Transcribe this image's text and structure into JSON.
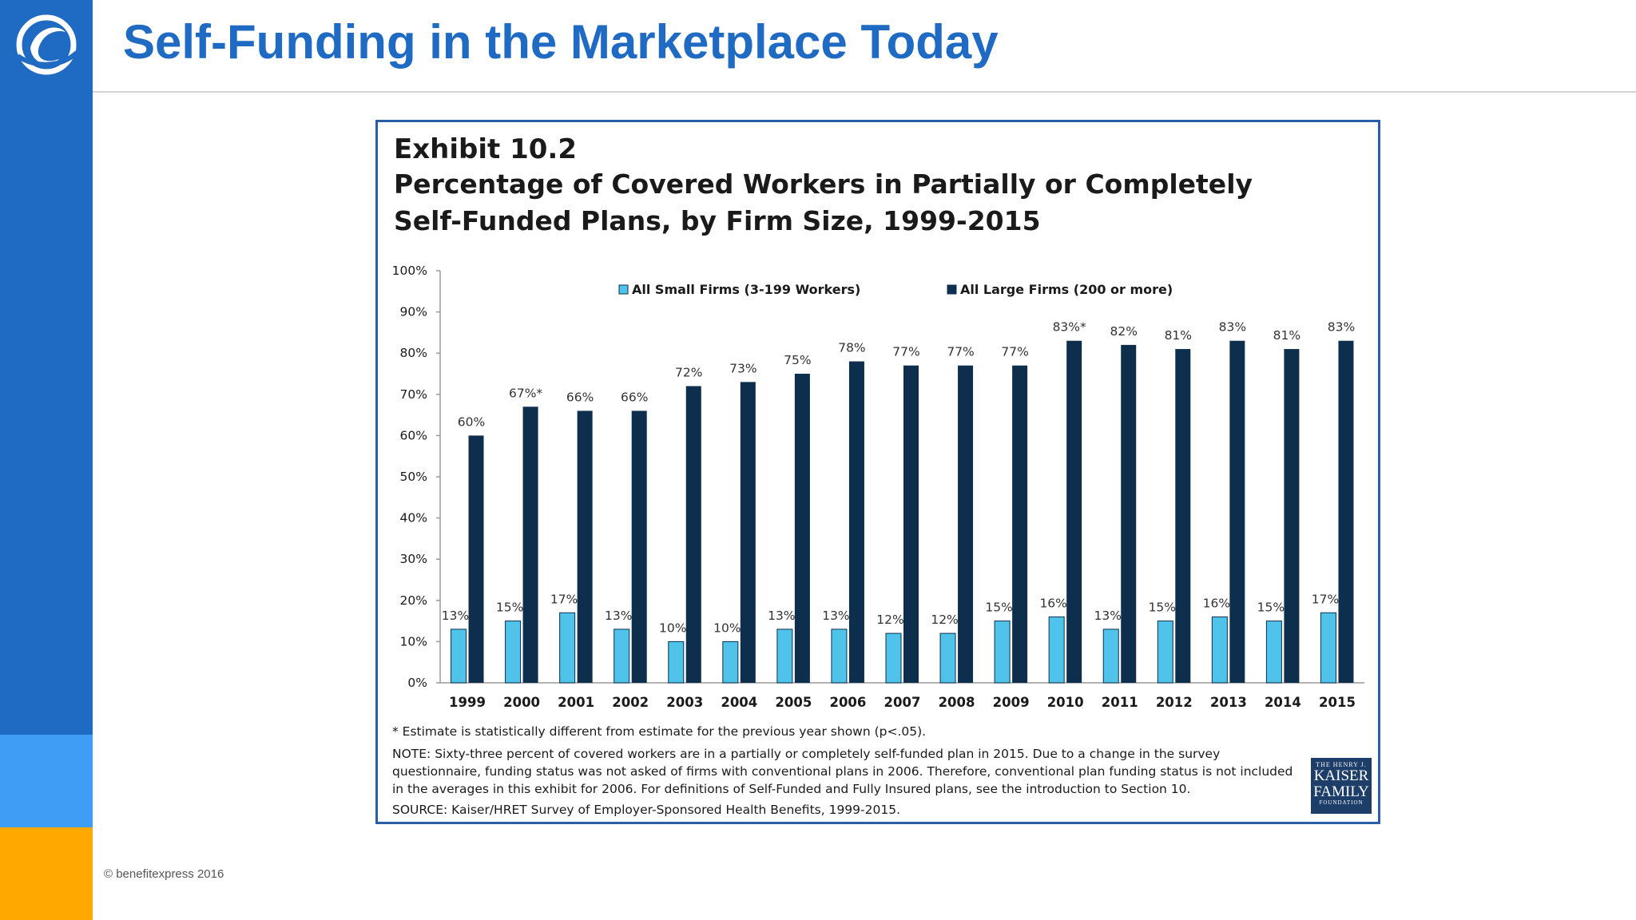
{
  "slide": {
    "title": "Self-Funding in the Marketplace Today",
    "copyright": "© benefitexpress 2016"
  },
  "brand": {
    "logo": "benefitexpress-swoosh-logo",
    "primary": "#1f6ac2",
    "accent_light": "#3f9df5",
    "accent_orange": "#ffa800"
  },
  "exhibit": {
    "title_line1": "Exhibit 10.2",
    "title_line2": "Percentage of Covered Workers in Partially or Completely",
    "title_line3": "Self-Funded Plans, by Firm Size, 1999-2015",
    "footnote_star": "* Estimate is statistically different from estimate for the previous year shown (p<.05).",
    "note": "NOTE: Sixty-three percent of covered workers are in a partially or completely self-funded plan in 2015. Due to a change in the survey questionnaire, funding status was not asked of firms with conventional plans in 2006. Therefore, conventional plan funding status is not included in the averages in this exhibit for 2006. For definitions of Self-Funded and Fully Insured plans, see the introduction to Section 10.",
    "source": "SOURCE: Kaiser/HRET Survey of Employer-Sponsored Health Benefits, 1999-2015.",
    "kff_logo": {
      "line1": "THE HENRY J.",
      "line2": "KAISER",
      "line3": "FAMILY",
      "line4": "FOUNDATION"
    }
  },
  "chart_data": {
    "type": "bar",
    "categories": [
      "1999",
      "2000",
      "2001",
      "2002",
      "2003",
      "2004",
      "2005",
      "2006",
      "2007",
      "2008",
      "2009",
      "2010",
      "2011",
      "2012",
      "2013",
      "2014",
      "2015"
    ],
    "series": [
      {
        "name": "All Small Firms (3-199 Workers)",
        "color": "#4fc3ea",
        "values": [
          13,
          15,
          17,
          13,
          10,
          10,
          13,
          13,
          12,
          12,
          15,
          16,
          13,
          15,
          16,
          15,
          17
        ],
        "labels": [
          "13%",
          "15%",
          "17%",
          "13%",
          "10%",
          "10%",
          "13%",
          "13%",
          "12%",
          "12%",
          "15%",
          "16%",
          "13%",
          "15%",
          "16%",
          "15%",
          "17%"
        ]
      },
      {
        "name": "All Large Firms (200 or more)",
        "color": "#0d2f4d",
        "values": [
          60,
          67,
          66,
          66,
          72,
          73,
          75,
          78,
          77,
          77,
          77,
          83,
          82,
          81,
          83,
          81,
          83
        ],
        "labels": [
          "60%",
          "67%*",
          "66%",
          "66%",
          "72%",
          "73%",
          "75%",
          "78%",
          "77%",
          "77%",
          "77%",
          "83%*",
          "82%",
          "81%",
          "83%",
          "81%",
          "83%"
        ]
      }
    ],
    "y_ticks": [
      "0%",
      "10%",
      "20%",
      "30%",
      "40%",
      "50%",
      "60%",
      "70%",
      "80%",
      "90%",
      "100%"
    ],
    "ylim": [
      0,
      100
    ],
    "grid": false,
    "legend_position": "top"
  }
}
